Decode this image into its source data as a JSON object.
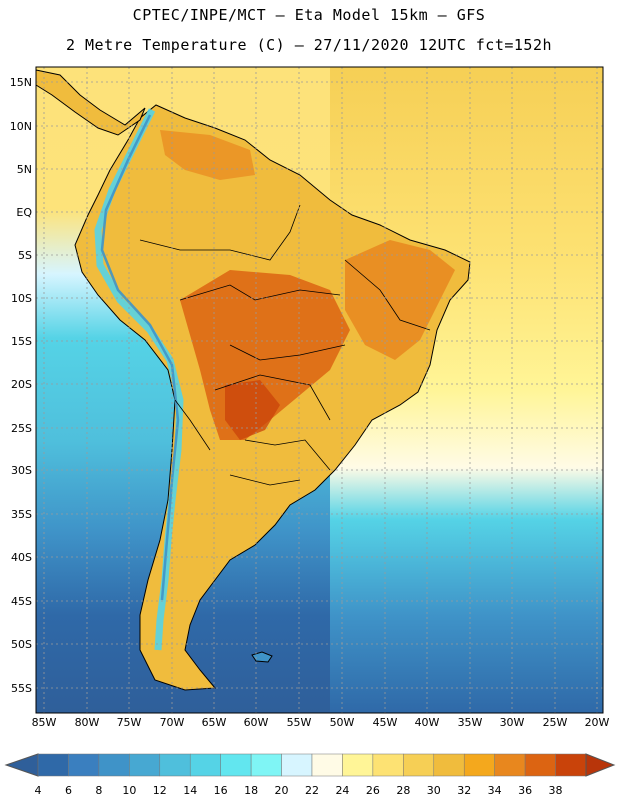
{
  "header": {
    "line1": "CPTEC/INPE/MCT –  Eta Model 15km – GFS",
    "line2": "2 Metre Temperature (C) – 27/11/2020 12UTC fct=152h"
  },
  "map": {
    "lat_labels": [
      "15N",
      "10N",
      "5N",
      "EQ",
      "5S",
      "10S",
      "15S",
      "20S",
      "25S",
      "30S",
      "35S",
      "40S",
      "45S",
      "50S",
      "55S"
    ],
    "lon_labels": [
      "85W",
      "80W",
      "75W",
      "70W",
      "65W",
      "60W",
      "55W",
      "50W",
      "45W",
      "40W",
      "35W",
      "30W",
      "25W",
      "20W"
    ]
  },
  "colorbar": {
    "labels": [
      "4",
      "6",
      "8",
      "10",
      "12",
      "14",
      "16",
      "18",
      "20",
      "22",
      "24",
      "26",
      "28",
      "30",
      "32",
      "34",
      "36",
      "38"
    ],
    "colors": [
      "#2f69a8",
      "#3a7fbf",
      "#3f93c8",
      "#47a8d2",
      "#4fbfdc",
      "#55d3e6",
      "#62e6ef",
      "#7ff5f5",
      "#d7f5ff",
      "#fffbe6",
      "#fff597",
      "#fde273",
      "#f6cf55",
      "#f0bc3d",
      "#f4a81d",
      "#e8871e",
      "#dc6412",
      "#c9430a"
    ],
    "under_color": "#2f5f9a",
    "over_color": "#b8350a"
  }
}
